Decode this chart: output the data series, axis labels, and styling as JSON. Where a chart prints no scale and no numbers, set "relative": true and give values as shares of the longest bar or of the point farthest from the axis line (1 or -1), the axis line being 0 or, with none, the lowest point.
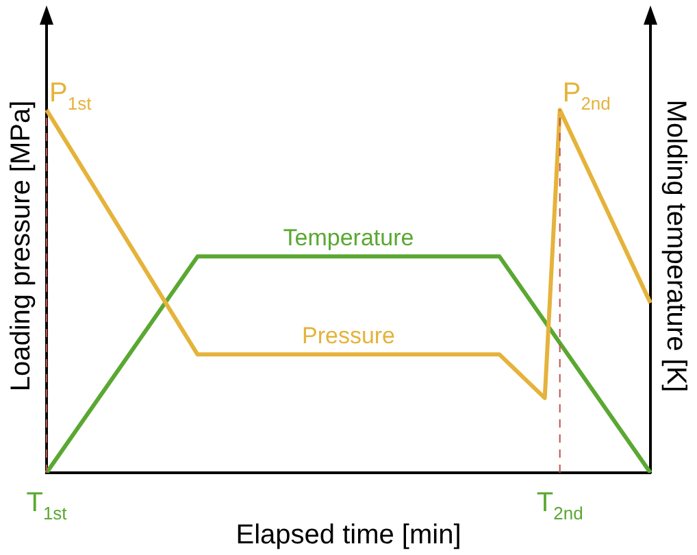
{
  "chart_data": {
    "type": "line",
    "relative": true,
    "xlabel": "Elapsed time [min]",
    "ylabel": "Loading pressure [MPa]",
    "y2label": "Molding temperature [K]",
    "categories": [
      "T$_{1st}$",
      null,
      null,
      null,
      null,
      null,
      null,
      null,
      null,
      null,
      null,
      null,
      null,
      null,
      null,
      null,
      null,
      null,
      null,
      null,
      null,
      null,
      null,
      null,
      null,
      null,
      null,
      null,
      null,
      null,
      null,
      null,
      null,
      null,
      "T$_{2nd}$",
      null,
      null,
      null,
      null,
      null,
      null
    ],
    "series": [
      {
        "name": "Pressure",
        "color": "#e5b33b",
        "values": [
          1,
          null,
          null,
          null,
          null,
          null,
          null,
          null,
          null,
          null,
          0.326,
          null,
          null,
          null,
          null,
          null,
          null,
          null,
          null,
          null,
          null,
          null,
          null,
          null,
          null,
          null,
          null,
          null,
          null,
          null,
          0.326,
          null,
          null,
          0.206,
          1,
          null,
          null,
          null,
          null,
          null,
          0.468
        ]
      },
      {
        "name": "Temperature",
        "color": "#5aa832",
        "values": [
          0,
          null,
          null,
          null,
          null,
          null,
          null,
          null,
          null,
          null,
          0.596,
          null,
          null,
          null,
          null,
          null,
          null,
          null,
          null,
          null,
          null,
          null,
          null,
          null,
          null,
          null,
          null,
          null,
          null,
          null,
          0.596,
          null,
          null,
          null,
          null,
          null,
          null,
          null,
          null,
          null,
          0
        ]
      }
    ],
    "annotations": [
      {
        "text": "P$_{1st}$",
        "x": "T$_{1st}$",
        "y": 1
      },
      {
        "text": "P$_{2nd}$",
        "x": "T$_{2nd}$",
        "y": 1
      }
    ],
    "ref_lines": [
      {
        "axis": "x",
        "value": "T$_{1st}$",
        "color": "#c0504d",
        "line_style": "dashed"
      },
      {
        "axis": "x",
        "value": "T$_{2nd}$",
        "color": "#c0504d",
        "line_style": "dashed"
      }
    ],
    "grid": false,
    "legend": false,
    "marker": "none",
    "line_style": "solid"
  }
}
